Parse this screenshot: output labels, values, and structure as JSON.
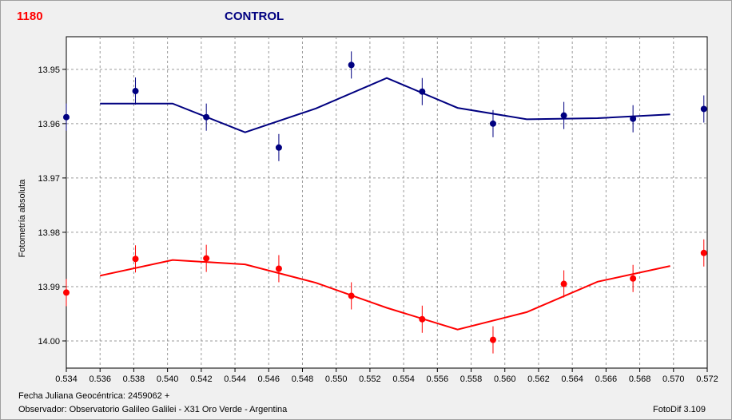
{
  "header": {
    "object_id": "1180",
    "title": "CONTROL"
  },
  "footer": {
    "date_label": "Fecha Juliana Geocéntrica: 2459062 +",
    "observer": "Observador: Observatorio Galileo Galilei - X31 Oro Verde - Argentina",
    "version": "FotoDif 3.109"
  },
  "chart_data": {
    "type": "scatter",
    "title": "CONTROL",
    "xlabel": "",
    "ylabel": "Fotometría absoluta",
    "xlim": [
      0.534,
      0.572
    ],
    "ylim": [
      13.944,
      14.005
    ],
    "y_inverted": true,
    "grid": true,
    "x_ticks": [
      0.534,
      0.536,
      0.538,
      0.54,
      0.542,
      0.544,
      0.546,
      0.548,
      0.55,
      0.552,
      0.554,
      0.556,
      0.558,
      0.56,
      0.562,
      0.564,
      0.566,
      0.568,
      0.57,
      0.572
    ],
    "y_ticks": [
      13.95,
      13.96,
      13.97,
      13.98,
      13.99,
      14.0
    ],
    "series": [
      {
        "color": "#000080",
        "points": [
          {
            "x": 0.534,
            "y": 13.9588,
            "err": 0.0025
          },
          {
            "x": 0.5381,
            "y": 13.954,
            "err": 0.0025
          },
          {
            "x": 0.5423,
            "y": 13.9588,
            "err": 0.0025
          },
          {
            "x": 0.5466,
            "y": 13.9644,
            "err": 0.0025
          },
          {
            "x": 0.5509,
            "y": 13.9492,
            "err": 0.0025
          },
          {
            "x": 0.5551,
            "y": 13.9541,
            "err": 0.0025
          },
          {
            "x": 0.5593,
            "y": 13.96,
            "err": 0.0025
          },
          {
            "x": 0.5635,
            "y": 13.9585,
            "err": 0.0025
          },
          {
            "x": 0.5676,
            "y": 13.9591,
            "err": 0.0025
          },
          {
            "x": 0.5718,
            "y": 13.9573,
            "err": 0.0025
          }
        ],
        "fit": [
          {
            "x": 0.536,
            "y": 13.9563
          },
          {
            "x": 0.5403,
            "y": 13.9563
          },
          {
            "x": 0.5446,
            "y": 13.9616
          },
          {
            "x": 0.5488,
            "y": 13.9572
          },
          {
            "x": 0.553,
            "y": 13.9516
          },
          {
            "x": 0.5572,
            "y": 13.9571
          },
          {
            "x": 0.5613,
            "y": 13.9592
          },
          {
            "x": 0.5655,
            "y": 13.959
          },
          {
            "x": 0.5698,
            "y": 13.9583
          }
        ]
      },
      {
        "color": "#ff0000",
        "points": [
          {
            "x": 0.534,
            "y": 13.9911,
            "err": 0.0025
          },
          {
            "x": 0.5381,
            "y": 13.9849,
            "err": 0.0025
          },
          {
            "x": 0.5423,
            "y": 13.9848,
            "err": 0.0025
          },
          {
            "x": 0.5466,
            "y": 13.9867,
            "err": 0.0025
          },
          {
            "x": 0.5509,
            "y": 13.9917,
            "err": 0.0025
          },
          {
            "x": 0.5551,
            "y": 13.996,
            "err": 0.0025
          },
          {
            "x": 0.5593,
            "y": 13.9998,
            "err": 0.0025
          },
          {
            "x": 0.5635,
            "y": 13.9895,
            "err": 0.0025
          },
          {
            "x": 0.5676,
            "y": 13.9885,
            "err": 0.0025
          },
          {
            "x": 0.5718,
            "y": 13.9838,
            "err": 0.0025
          }
        ],
        "fit": [
          {
            "x": 0.536,
            "y": 13.988
          },
          {
            "x": 0.5403,
            "y": 13.9851
          },
          {
            "x": 0.5446,
            "y": 13.9859
          },
          {
            "x": 0.5488,
            "y": 13.9893
          },
          {
            "x": 0.553,
            "y": 13.9939
          },
          {
            "x": 0.5572,
            "y": 13.9979
          },
          {
            "x": 0.5613,
            "y": 13.9947
          },
          {
            "x": 0.5655,
            "y": 13.9891
          },
          {
            "x": 0.5698,
            "y": 13.9862
          }
        ]
      }
    ]
  }
}
